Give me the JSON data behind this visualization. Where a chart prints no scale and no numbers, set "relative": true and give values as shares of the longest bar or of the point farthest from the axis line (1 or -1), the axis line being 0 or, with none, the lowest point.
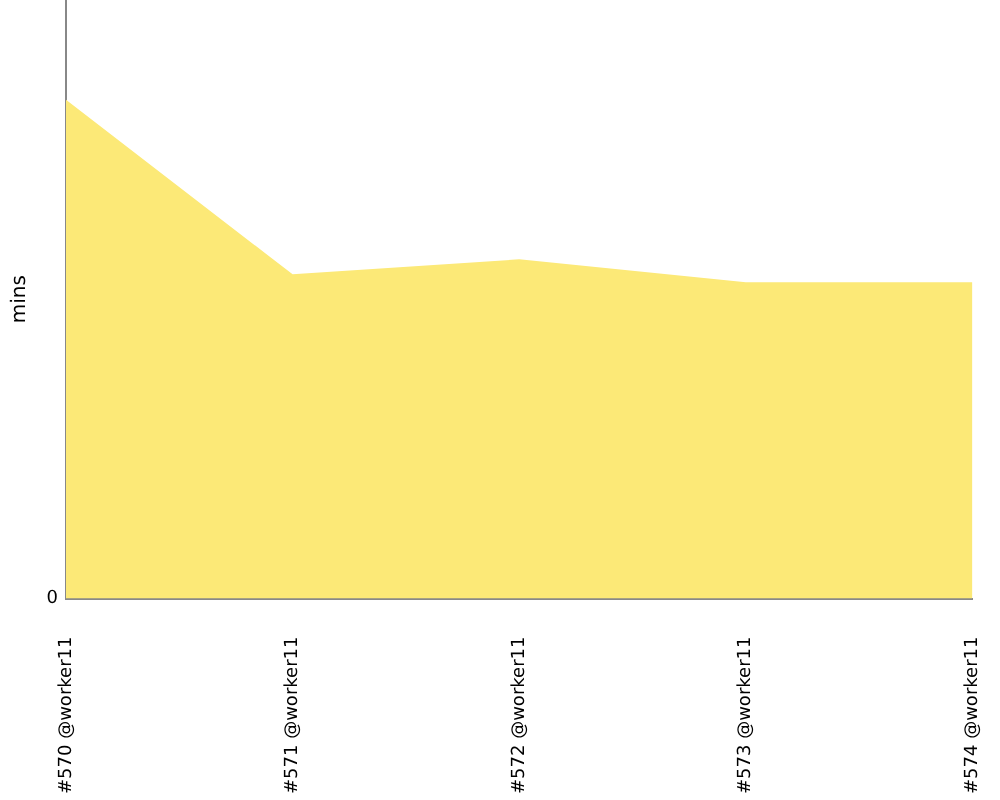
{
  "chart_data": {
    "type": "area",
    "ylabel": "mins",
    "relative": true,
    "annotations": [
      "0"
    ],
    "categories": [
      "#570 @worker11",
      "#571 @worker11",
      "#572 @worker11",
      "#573 @worker11",
      "#574 @worker11"
    ],
    "series": [
      {
        "color": "#fce977",
        "values": [
          1,
          0.65,
          0.68,
          0.634,
          0.634
        ]
      }
    ],
    "grid": false,
    "legend": false
  }
}
